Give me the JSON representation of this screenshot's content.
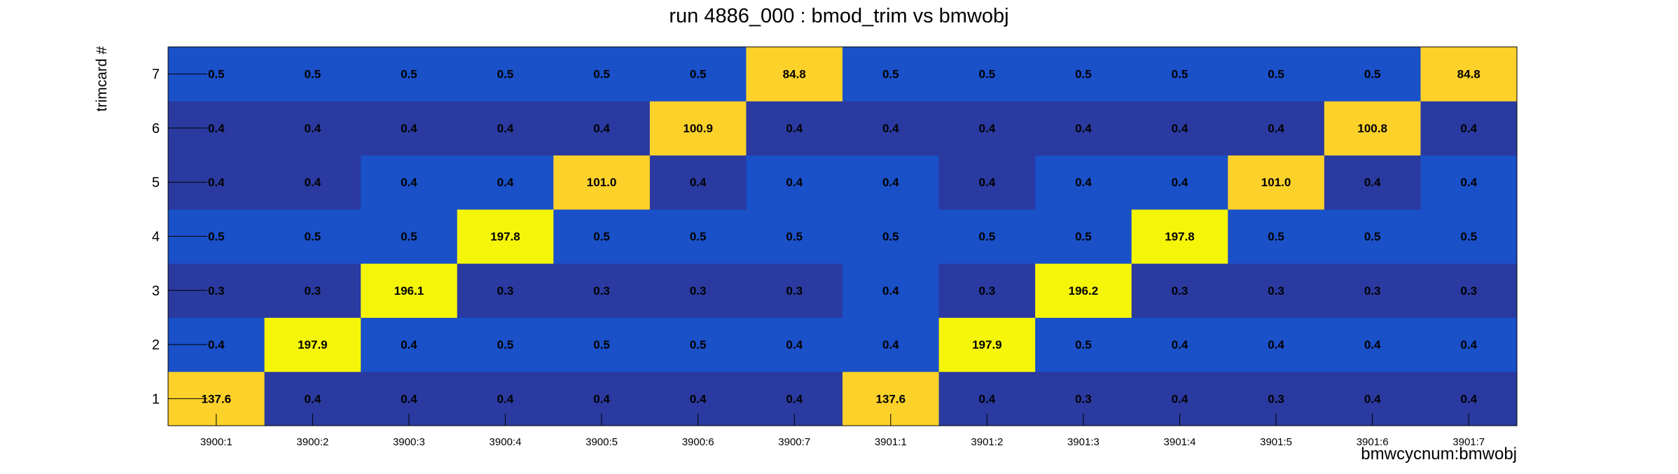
{
  "chart_data": {
    "type": "heatmap",
    "title": "run 4886_000 : bmod_trim vs bmwobj",
    "xlabel": "bmwcycnum:bmwobj",
    "ylabel": "trimcard #",
    "x_categories": [
      "3900:1",
      "3900:2",
      "3900:3",
      "3900:4",
      "3900:5",
      "3900:6",
      "3900:7",
      "3901:1",
      "3901:2",
      "3901:3",
      "3901:4",
      "3901:5",
      "3901:6",
      "3901:7"
    ],
    "y_categories": [
      "1",
      "2",
      "3",
      "4",
      "5",
      "6",
      "7"
    ],
    "values": [
      [
        "137.6",
        "0.4",
        "0.4",
        "0.4",
        "0.4",
        "0.4",
        "0.4",
        "137.6",
        "0.4",
        "0.3",
        "0.4",
        "0.3",
        "0.4",
        "0.4"
      ],
      [
        "0.4",
        "197.9",
        "0.4",
        "0.5",
        "0.5",
        "0.5",
        "0.4",
        "0.4",
        "197.9",
        "0.5",
        "0.4",
        "0.4",
        "0.4",
        "0.4"
      ],
      [
        "0.3",
        "0.3",
        "196.1",
        "0.3",
        "0.3",
        "0.3",
        "0.3",
        "0.4",
        "0.3",
        "196.2",
        "0.3",
        "0.3",
        "0.3",
        "0.3"
      ],
      [
        "0.5",
        "0.5",
        "0.5",
        "197.8",
        "0.5",
        "0.5",
        "0.5",
        "0.5",
        "0.5",
        "0.5",
        "197.8",
        "0.5",
        "0.5",
        "0.5"
      ],
      [
        "0.4",
        "0.4",
        "0.4",
        "0.4",
        "101.0",
        "0.4",
        "0.4",
        "0.4",
        "0.4",
        "0.4",
        "0.4",
        "101.0",
        "0.4",
        "0.4"
      ],
      [
        "0.4",
        "0.4",
        "0.4",
        "0.4",
        "0.4",
        "100.9",
        "0.4",
        "0.4",
        "0.4",
        "0.4",
        "0.4",
        "0.4",
        "100.8",
        "0.4"
      ],
      [
        "0.5",
        "0.5",
        "0.5",
        "0.5",
        "0.5",
        "0.5",
        "84.8",
        "0.5",
        "0.5",
        "0.5",
        "0.5",
        "0.5",
        "0.5",
        "84.8"
      ]
    ],
    "colors": {
      "low": "#2a3aa0",
      "low_alt": "#1a50c8",
      "high_a": "#f5f50a",
      "high_b": "#fcd12a",
      "frame": "#000000",
      "text": "#000000"
    },
    "grid": false,
    "legend": "none"
  }
}
